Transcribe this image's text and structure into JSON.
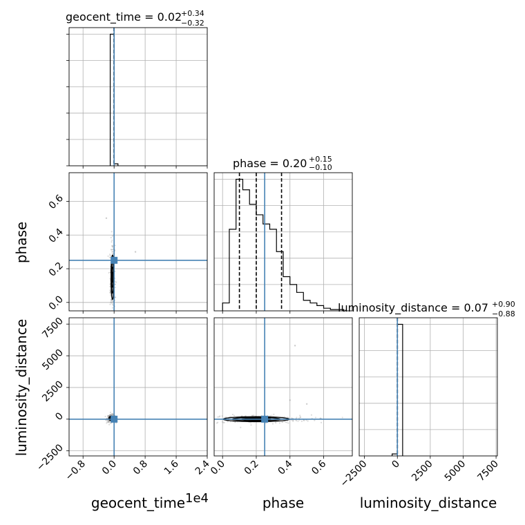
{
  "colors": {
    "truth": "#4682b4",
    "hist": "#000000",
    "grid": "#b0b0b0",
    "quantile": "#000000"
  },
  "chart_data": [
    {
      "type": "histogram",
      "panel": "geocent_time-1d",
      "title_param": "geocent_time",
      "title_median": "0.02",
      "title_plus": "+0.34",
      "title_minus": "−0.32",
      "xlim": [
        -11600,
        24000
      ],
      "bins": [
        {
          "x0": -1000,
          "x1": 0,
          "h": 1.0
        },
        {
          "x0": 0,
          "x1": 1000,
          "h": 0.015
        }
      ],
      "quantiles": [
        -0.3,
        0.02,
        0.36
      ],
      "truth": 0.0
    },
    {
      "type": "histogram",
      "panel": "phase-1d",
      "title_param": "phase",
      "title_median": "0.20",
      "title_plus": "+0.15",
      "title_minus": "−0.10",
      "xlim": [
        -0.05,
        0.77
      ],
      "bins": [
        {
          "x0": 0.0,
          "x1": 0.04,
          "h": 0.06
        },
        {
          "x0": 0.04,
          "x1": 0.08,
          "h": 0.62
        },
        {
          "x0": 0.08,
          "x1": 0.12,
          "h": 1.0
        },
        {
          "x0": 0.12,
          "x1": 0.16,
          "h": 0.92
        },
        {
          "x0": 0.16,
          "x1": 0.2,
          "h": 0.81
        },
        {
          "x0": 0.2,
          "x1": 0.24,
          "h": 0.73
        },
        {
          "x0": 0.24,
          "x1": 0.28,
          "h": 0.66
        },
        {
          "x0": 0.28,
          "x1": 0.32,
          "h": 0.62
        },
        {
          "x0": 0.32,
          "x1": 0.36,
          "h": 0.45
        },
        {
          "x0": 0.36,
          "x1": 0.4,
          "h": 0.26
        },
        {
          "x0": 0.4,
          "x1": 0.44,
          "h": 0.2
        },
        {
          "x0": 0.44,
          "x1": 0.48,
          "h": 0.14
        },
        {
          "x0": 0.48,
          "x1": 0.52,
          "h": 0.08
        },
        {
          "x0": 0.52,
          "x1": 0.56,
          "h": 0.06
        },
        {
          "x0": 0.56,
          "x1": 0.6,
          "h": 0.04
        },
        {
          "x0": 0.6,
          "x1": 0.64,
          "h": 0.02
        },
        {
          "x0": 0.64,
          "x1": 0.68,
          "h": 0.01
        },
        {
          "x0": 0.68,
          "x1": 0.72,
          "h": 0.01
        }
      ],
      "quantiles": [
        0.1,
        0.2,
        0.35
      ],
      "truth": 0.25
    },
    {
      "type": "histogram",
      "panel": "luminosity_distance-1d",
      "title_param": "luminosity_distance",
      "title_median": "0.07",
      "title_plus": "+0.90",
      "title_minus": "−0.88",
      "xlim": [
        -2900,
        7600
      ],
      "bins": [
        {
          "x0": -400,
          "x1": 0,
          "h": 0.015
        },
        {
          "x0": 0,
          "x1": 400,
          "h": 1.0
        }
      ],
      "quantiles": [
        -0.81,
        0.07,
        0.97
      ],
      "truth": 0.0
    },
    {
      "type": "scatter",
      "panel": "geocent_time-vs-phase",
      "xlim": [
        -11600,
        24000
      ],
      "ylim": [
        -0.05,
        0.77
      ],
      "core": {
        "x": -400,
        "y": 0.15,
        "sx": 180,
        "sy": 0.06
      },
      "outliers": [
        {
          "x": 5500,
          "y": 0.3
        },
        {
          "x": -2000,
          "y": 0.5
        },
        {
          "x": 300,
          "y": 0.03
        }
      ],
      "truth": {
        "x": 0.0,
        "y": 0.25
      }
    },
    {
      "type": "scatter",
      "panel": "geocent_time-vs-luminosity_distance",
      "xlim": [
        -11600,
        24000
      ],
      "ylim": [
        -2900,
        8000
      ],
      "core": {
        "x": -700,
        "y": 60,
        "sx": 300,
        "sy": 80
      },
      "outliers": [],
      "truth": {
        "x": 0.0,
        "y": 0.0
      }
    },
    {
      "type": "scatter",
      "panel": "phase-vs-luminosity_distance",
      "xlim": [
        -0.05,
        0.77
      ],
      "ylim": [
        -2900,
        8000
      ],
      "core": {
        "x": 0.2,
        "y": 0.0,
        "sx": 0.09,
        "sy": 90
      },
      "outliers": [
        {
          "x": 0.43,
          "y": 5800
        },
        {
          "x": 0.4,
          "y": 1500
        },
        {
          "x": 0.5,
          "y": 1200
        }
      ],
      "truth": {
        "x": 0.25,
        "y": 0.0
      }
    }
  ],
  "axes": {
    "geocent_time": {
      "label": "geocent_time",
      "offset_text": "1e4",
      "ticks": [
        -8000,
        0,
        8000,
        16000,
        24000
      ],
      "tick_labels": [
        "−0.8",
        "0.0",
        "0.8",
        "1.6",
        "2.4"
      ]
    },
    "phase": {
      "label": "phase",
      "ticks": [
        0.0,
        0.2,
        0.4,
        0.6
      ],
      "tick_labels": [
        "0.0",
        "0.2",
        "0.4",
        "0.6"
      ]
    },
    "luminosity_distance": {
      "label": "luminosity_distance",
      "ticks": [
        -2500,
        0,
        2500,
        5000,
        7500
      ],
      "tick_labels": [
        "−2500",
        "0",
        "2500",
        "5000",
        "7500"
      ]
    }
  }
}
